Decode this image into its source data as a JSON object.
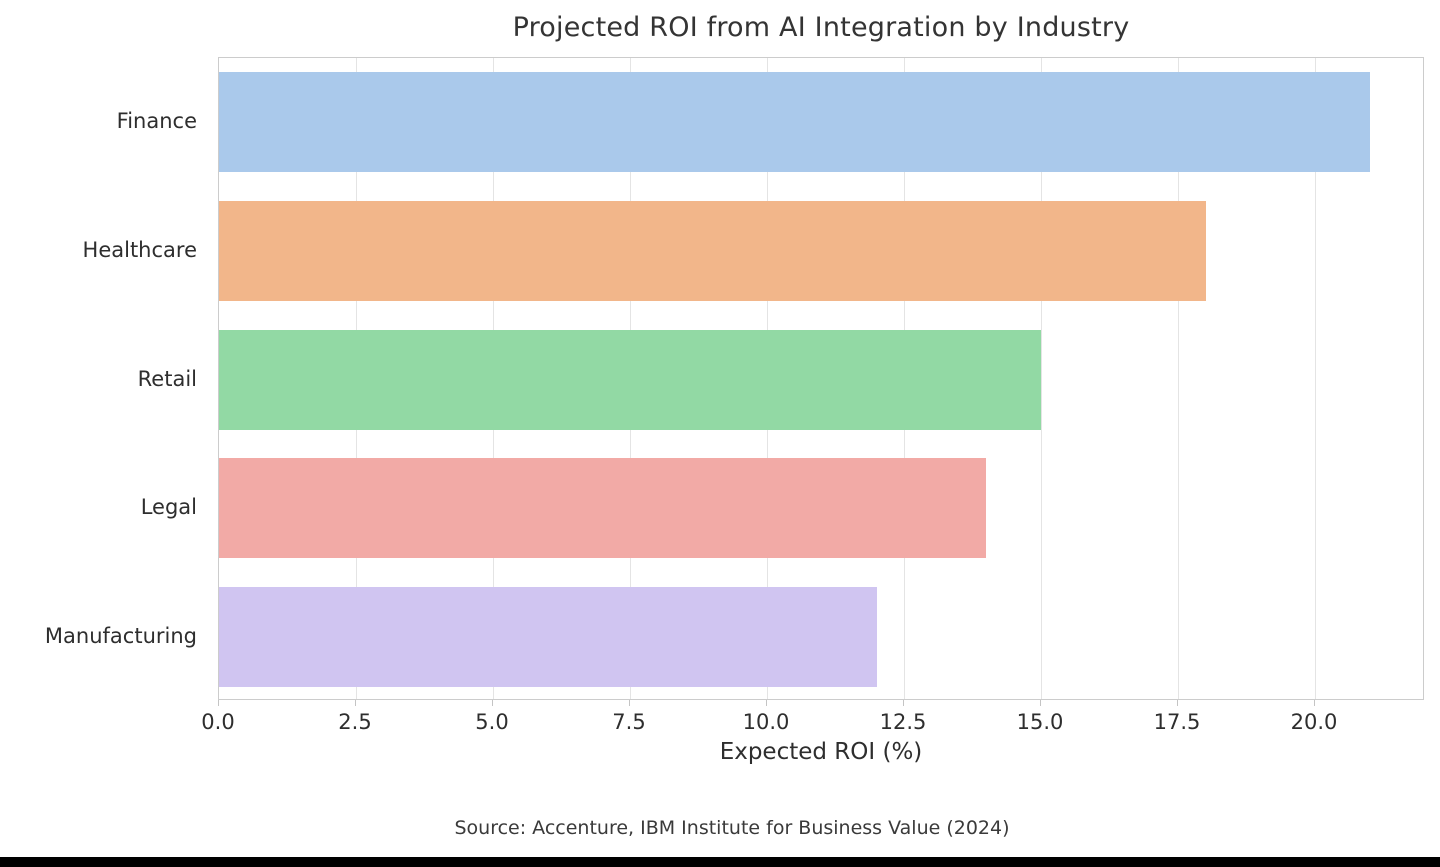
{
  "chart_data": {
    "type": "bar",
    "orientation": "horizontal",
    "title": "Projected ROI from AI Integration by Industry",
    "categories": [
      "Finance",
      "Healthcare",
      "Retail",
      "Legal",
      "Manufacturing"
    ],
    "values": [
      21,
      18,
      15,
      14,
      12
    ],
    "bar_colors": [
      "#aac9eb",
      "#f2b68a",
      "#92d9a4",
      "#f2aaa6",
      "#d0c5f1"
    ],
    "xlabel": "Expected ROI (%)",
    "ylabel": "",
    "xlim": [
      0,
      22
    ],
    "xticks": [
      0,
      2.5,
      5,
      7.5,
      10,
      12.5,
      15,
      17.5,
      20
    ],
    "xtick_labels": [
      "0.0",
      "2.5",
      "5.0",
      "7.5",
      "10.0",
      "12.5",
      "15.0",
      "17.5",
      "20.0"
    ],
    "grid": true,
    "grid_axis": "x",
    "legend": false,
    "source": "Source: Accenture, IBM Institute for Business Value (2024)"
  },
  "colors": {
    "grid": "#e4e4e4",
    "spine": "#cccccc",
    "text": "#2e2e2e",
    "bottom_bar": "#000000"
  }
}
